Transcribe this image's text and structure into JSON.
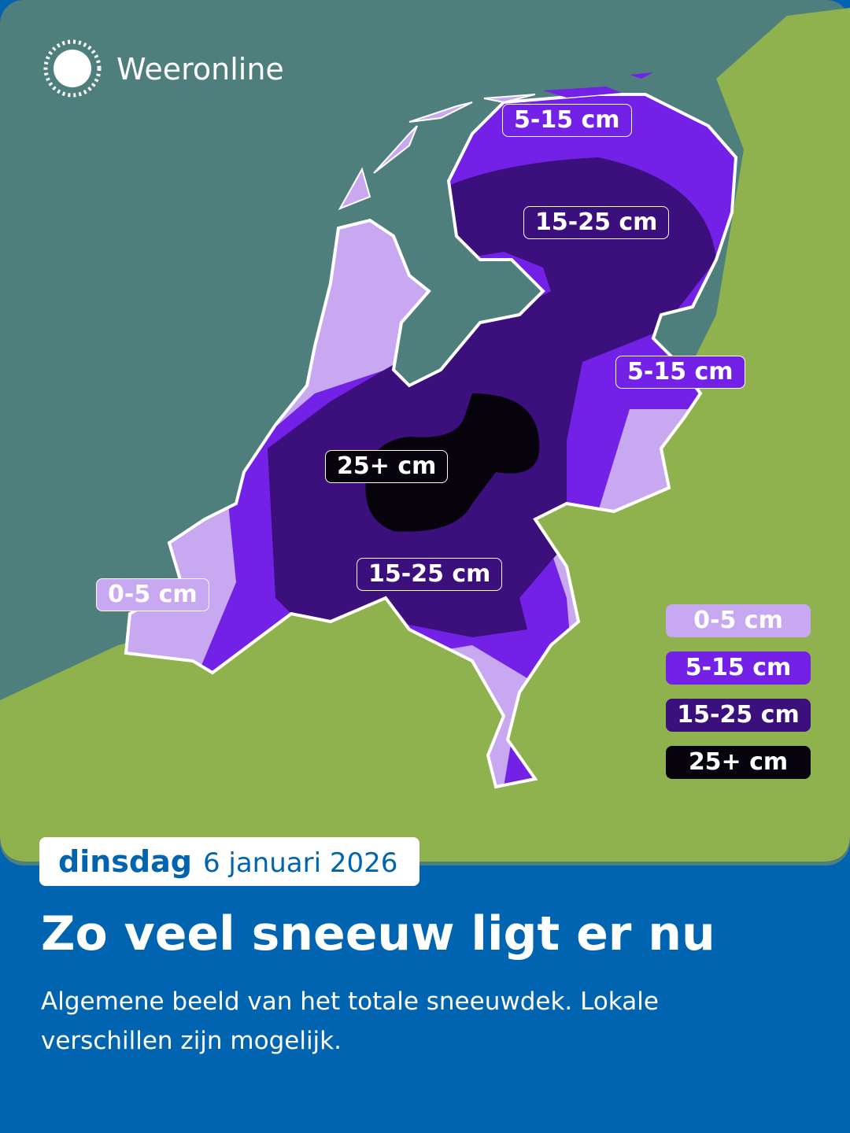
{
  "brand": "Weeronline",
  "map_labels": [
    "5-15 cm",
    "15-25 cm",
    "5-15 cm",
    "25+ cm",
    "15-25 cm",
    "0-5 cm"
  ],
  "legend": {
    "items": [
      {
        "label": "0-5 cm",
        "color": "#c7a8f1"
      },
      {
        "label": "5-15 cm",
        "color": "#7321e6"
      },
      {
        "label": "15-25 cm",
        "color": "#3b0f7c"
      },
      {
        "label": "25+ cm",
        "color": "#07030c"
      }
    ]
  },
  "footer": {
    "weekday": "dinsdag",
    "date": "6 januari 2026",
    "title": "Zo veel sneeuw ligt er nu",
    "subtitle": "Algemene beeld van het totale sneeuwdek. Lokale verschillen zijn mogelijk."
  }
}
